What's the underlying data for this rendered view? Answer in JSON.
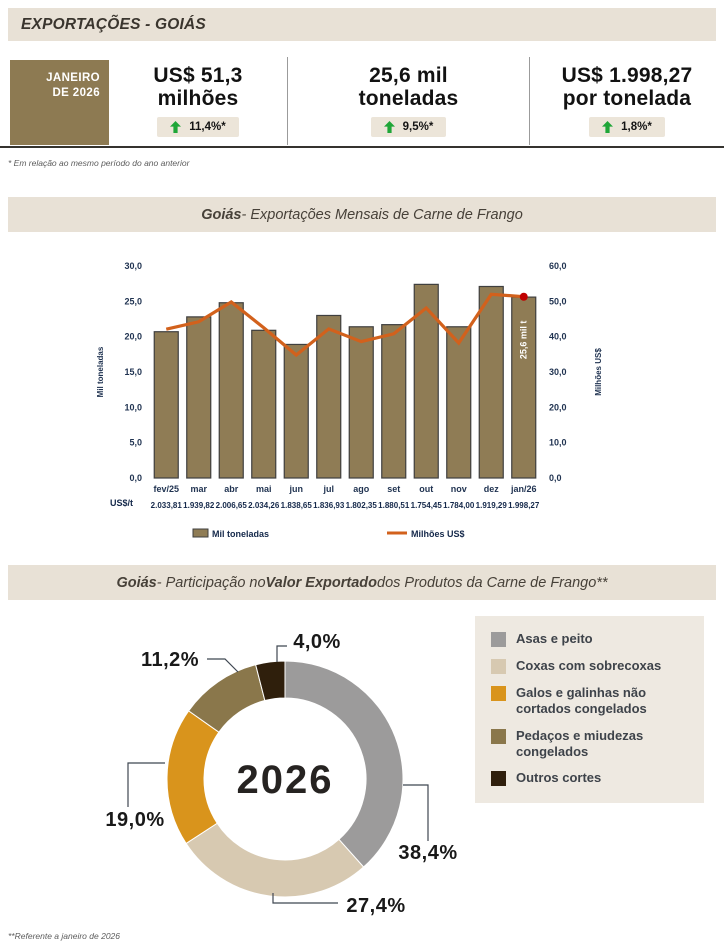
{
  "page": {
    "title": "EXPORTAÇÕES - GOIÁS",
    "footnote_top": "* Em relação ao mesmo período do ano anterior",
    "footnote_bottom": "**Referente a janeiro de 2026"
  },
  "kpi": {
    "period": {
      "line1": "JANEIRO",
      "line2": "DE 2026"
    },
    "items": [
      {
        "value_line1": "US$ 51,3",
        "value_line2": "milhões",
        "delta": "11,4%*",
        "direction": "up"
      },
      {
        "value_line1": "25,6 mil",
        "value_line2": "toneladas",
        "delta": "9,5%*",
        "direction": "up"
      },
      {
        "value_line1": "US$ 1.998,27",
        "value_line2": "por tonelada",
        "delta": "1,8%*",
        "direction": "up"
      }
    ]
  },
  "sections": {
    "monthly": {
      "title_bold": "Goiás",
      "title_rest": " - Exportações Mensais de Carne de Frango"
    },
    "share": {
      "title_bold1": "Goiás",
      "title_mid": " - Participação no ",
      "title_bold2": "Valor Exportado",
      "title_rest": " dos Produtos da Carne de Frango**"
    }
  },
  "colors": {
    "band_beige": "#e8e1d6",
    "badge_olive": "#8d7a52",
    "bar_fill": "#8f7c55",
    "bar_border": "#3f3f3f",
    "line_orange": "#d2611c",
    "marker_red": "#c00000",
    "delta_green": "#1fa638",
    "axis_text": "#1f3250",
    "pill_beige": "#ece5d9",
    "legend_bg": "#eee9e1"
  },
  "chart_data": [
    {
      "type": "bar",
      "subtype": "combo-bar-line",
      "title": "Goiás - Exportações Mensais de Carne de Frango",
      "categories": [
        "fev/25",
        "mar",
        "abr",
        "mai",
        "jun",
        "jul",
        "ago",
        "set",
        "out",
        "nov",
        "dez",
        "jan/26"
      ],
      "series": [
        {
          "name": "Mil toneladas",
          "type": "bar",
          "axis": "left",
          "values": [
            20.7,
            22.8,
            24.8,
            20.9,
            18.9,
            23.0,
            21.4,
            21.7,
            27.4,
            21.4,
            27.1,
            25.6
          ]
        },
        {
          "name": "Milhões US$",
          "type": "line",
          "axis": "right",
          "values": [
            42.1,
            44.2,
            49.8,
            42.5,
            34.8,
            42.2,
            38.6,
            40.8,
            48.1,
            38.2,
            52.0,
            51.3
          ]
        }
      ],
      "left_axis": {
        "label": "Mil toneladas",
        "min": 0,
        "max": 30,
        "step": 5,
        "ticks": [
          "0,0",
          "5,0",
          "10,0",
          "15,0",
          "20,0",
          "25,0",
          "30,0"
        ]
      },
      "right_axis": {
        "label": "Milhões US$",
        "min": 0,
        "max": 60,
        "step": 10,
        "ticks": [
          "0,0",
          "10,0",
          "20,0",
          "30,0",
          "40,0",
          "50,0",
          "60,0"
        ]
      },
      "usd_per_ton": {
        "label": "US$/t",
        "values": [
          "2.033,81",
          "1.939,82",
          "2.006,65",
          "2.034,26",
          "1.838,65",
          "1.836,93",
          "1.802,35",
          "1.880,51",
          "1.754,45",
          "1.784,00",
          "1.919,29",
          "1.998,27"
        ]
      },
      "last_bar_annotation": "25,6 mil t",
      "legend": [
        "Mil toneladas",
        "Milhões US$"
      ],
      "grid": false,
      "legend_position": "bottom"
    },
    {
      "type": "pie",
      "subtype": "donut",
      "title": "Goiás - Participação no Valor Exportado dos Produtos da Carne de Frango**",
      "center_label": "2026",
      "slices": [
        {
          "label": "Asas e peito",
          "value": 38.4,
          "pct": "38,4%",
          "color": "#9c9b9b"
        },
        {
          "label": "Coxas com sobrecoxas",
          "value": 27.4,
          "pct": "27,4%",
          "color": "#d7c9b1"
        },
        {
          "label": "Galos e galinhas não cortados congelados",
          "value": 19.0,
          "pct": "19,0%",
          "color": "#d9941c"
        },
        {
          "label": "Pedaços e miudezas congelados",
          "value": 11.2,
          "pct": "11,2%",
          "color": "#8a774b"
        },
        {
          "label": "Outros cortes",
          "value": 4.0,
          "pct": "4,0%",
          "color": "#2f1f0c"
        }
      ],
      "legend_position": "right"
    }
  ]
}
